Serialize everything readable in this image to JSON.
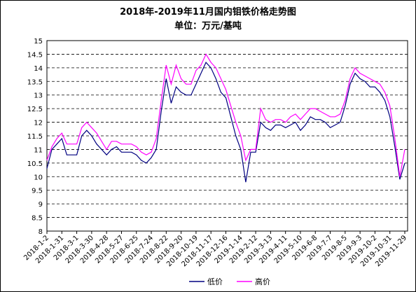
{
  "chart_data": {
    "type": "line",
    "title": "2018年-2019年11月国内钼铁价格走势图",
    "subtitle": "单位：万元/基吨",
    "categories": [
      "2018-1-2",
      null,
      null,
      "2018-1-31",
      null,
      null,
      "2018-3-1",
      null,
      null,
      "2018-3-30",
      null,
      null,
      "2018-4-28",
      null,
      null,
      "2018-5-27",
      null,
      null,
      "2018-6-25",
      null,
      null,
      "2018-7-24",
      null,
      null,
      "2018-8-22",
      null,
      null,
      "2018-9-20",
      null,
      null,
      "2018-10-19",
      null,
      null,
      "2018-11-17",
      null,
      null,
      "2018-12-16",
      null,
      null,
      "2019-1-14",
      null,
      null,
      "2019-2-12",
      null,
      null,
      "2019-3-13",
      null,
      null,
      "2019-4-11",
      null,
      null,
      "2019-5-10",
      null,
      null,
      "2019-6-8",
      null,
      null,
      "2019-7-7",
      null,
      null,
      "2019-8-5",
      null,
      null,
      "2019-9-3",
      null,
      null,
      "2019-10-2",
      null,
      null,
      "2019-10-31",
      null,
      null,
      "2019-11-29"
    ],
    "series": [
      {
        "name": "低价",
        "color": "#000080",
        "values": [
          10.3,
          11.0,
          11.2,
          11.4,
          10.8,
          10.8,
          10.8,
          11.5,
          11.7,
          11.5,
          11.2,
          11.0,
          10.8,
          11.0,
          11.1,
          10.9,
          10.9,
          10.9,
          10.8,
          10.6,
          10.5,
          10.7,
          11.0,
          12.4,
          13.6,
          12.7,
          13.3,
          13.1,
          13.0,
          13.0,
          13.4,
          13.8,
          14.2,
          14.0,
          13.6,
          13.1,
          12.9,
          12.2,
          11.5,
          11.0,
          9.8,
          10.9,
          10.9,
          12.0,
          11.8,
          11.7,
          11.9,
          11.9,
          11.8,
          11.9,
          12.0,
          11.7,
          11.9,
          12.2,
          12.1,
          12.1,
          12.0,
          11.8,
          11.9,
          12.0,
          12.6,
          13.4,
          13.8,
          13.6,
          13.5,
          13.3,
          13.3,
          13.1,
          12.8,
          12.2,
          11.1,
          9.9,
          10.5
        ]
      },
      {
        "name": "高价",
        "color": "#ff00ff",
        "values": [
          10.6,
          11.1,
          11.4,
          11.6,
          11.2,
          11.2,
          11.2,
          11.8,
          12.0,
          11.8,
          11.6,
          11.3,
          11.0,
          11.3,
          11.3,
          11.2,
          11.2,
          11.2,
          11.1,
          10.9,
          10.8,
          10.9,
          11.4,
          12.8,
          14.1,
          13.4,
          14.1,
          13.6,
          13.4,
          13.4,
          13.9,
          14.1,
          14.5,
          14.2,
          14.0,
          13.6,
          13.2,
          12.6,
          12.0,
          11.5,
          10.6,
          11.0,
          11.0,
          12.5,
          12.1,
          12.0,
          12.1,
          12.1,
          12.0,
          12.2,
          12.3,
          12.1,
          12.3,
          12.5,
          12.5,
          12.4,
          12.3,
          12.2,
          12.2,
          12.3,
          12.8,
          13.6,
          14.0,
          13.8,
          13.7,
          13.6,
          13.5,
          13.4,
          13.1,
          12.6,
          11.4,
          10.0,
          11.0
        ]
      }
    ],
    "ylim": [
      8,
      15
    ],
    "yticks": [
      8,
      8.5,
      9,
      9.5,
      10,
      10.5,
      11,
      11.5,
      12,
      12.5,
      13,
      13.5,
      14,
      14.5,
      15
    ],
    "grid": true,
    "legend": "bottom"
  }
}
